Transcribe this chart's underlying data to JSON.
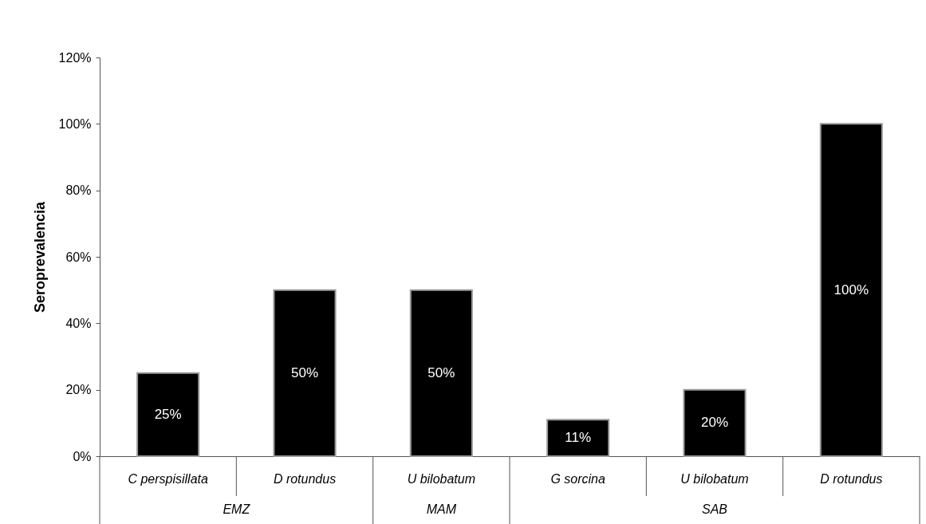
{
  "chart_data": {
    "type": "bar",
    "ylabel": "Seroprevalencia",
    "categories": [
      "C perspisillata",
      "D  rotundus",
      "U  bilobatum",
      "G  sorcina",
      "U  bilobatum",
      "D  rotundus"
    ],
    "values": [
      25,
      50,
      50,
      11,
      20,
      100
    ],
    "value_labels": [
      "25%",
      "50%",
      "50%",
      "11%",
      "20%",
      "100%"
    ],
    "color": "#000000",
    "ylim": [
      0,
      120
    ],
    "yticks": [
      {
        "value": 0,
        "label": "0%"
      },
      {
        "value": 20,
        "label": "20%"
      },
      {
        "value": 40,
        "label": "40%"
      },
      {
        "value": 60,
        "label": "60%"
      },
      {
        "value": 80,
        "label": "80%"
      },
      {
        "value": 100,
        "label": "100%"
      },
      {
        "value": 120,
        "label": "120%"
      }
    ],
    "annotations": [
      "EMZ",
      "MAM",
      "SAB"
    ],
    "grid": false
  }
}
